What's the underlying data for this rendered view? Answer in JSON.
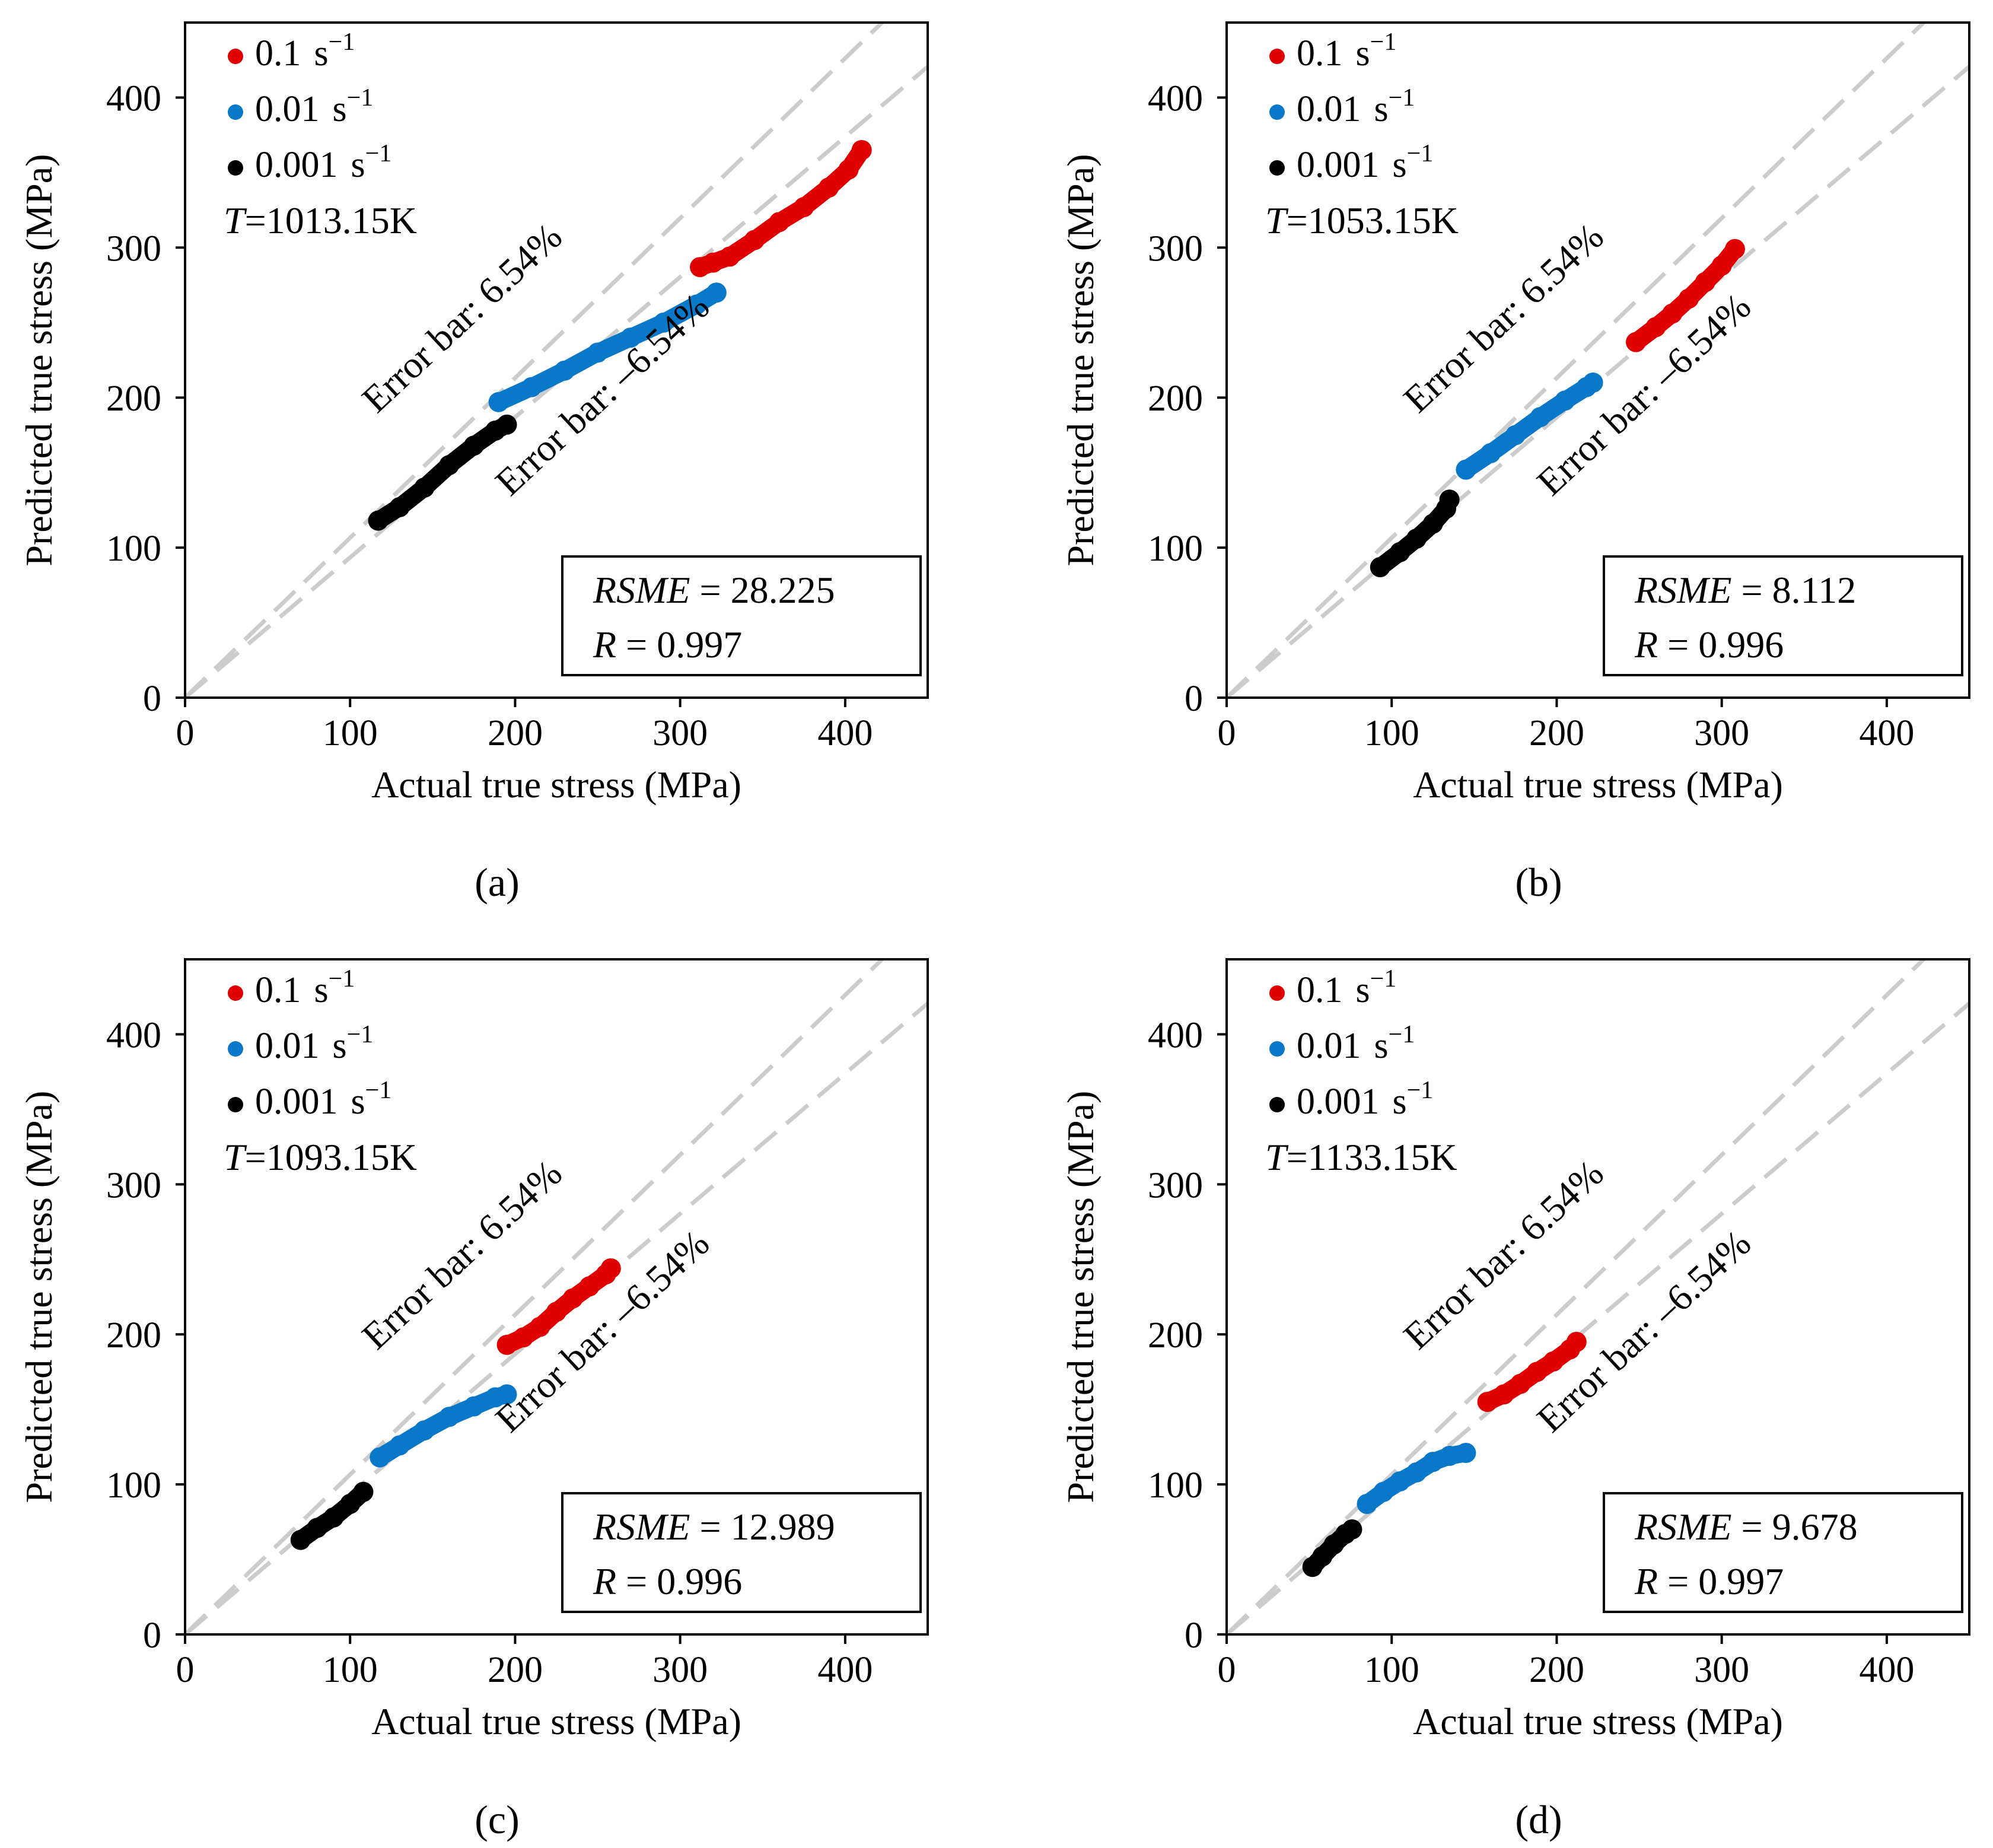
{
  "colors": {
    "red": "#e00000",
    "blue": "#0a78c8",
    "black": "#000000",
    "guide": "#cccccc",
    "frame": "#000000"
  },
  "common": {
    "xlabel": "Actual true stress (MPa)",
    "ylabel": "Predicted true stress (MPa)",
    "xticks": [
      "0",
      "100",
      "200",
      "300",
      "400"
    ],
    "yticks": [
      "0",
      "100",
      "200",
      "300",
      "400"
    ],
    "legend": [
      {
        "rate": "0.1",
        "unit": "s",
        "exp": "−1",
        "color": "red"
      },
      {
        "rate": "0.01",
        "unit": "s",
        "exp": "−1",
        "color": "blue"
      },
      {
        "rate": "0.001",
        "unit": "s",
        "exp": "−1",
        "color": "black"
      }
    ],
    "error_upper_label": "Error bar: 6.54%",
    "error_lower_label": "Error bar: –6.54%",
    "temp_symbol": "T",
    "rsme_symbol": "RSME",
    "r_symbol": "R",
    "equals": " = "
  },
  "chart_data": [
    {
      "type": "scatter",
      "panel_label": "(a)",
      "temperature": "=1013.15K",
      "rsme": "28.225",
      "r": "0.997",
      "xlim": [
        0,
        450
      ],
      "ylim": [
        0,
        450
      ],
      "error_band_pct": 6.54,
      "series": [
        {
          "name": "0.1 s−1",
          "color": "red",
          "points": [
            [
              312,
              287
            ],
            [
              320,
              290
            ],
            [
              330,
              294
            ],
            [
              345,
              305
            ],
            [
              360,
              317
            ],
            [
              375,
              327
            ],
            [
              390,
              340
            ],
            [
              402,
              352
            ],
            [
              410,
              365
            ]
          ]
        },
        {
          "name": "0.01 s−1",
          "color": "blue",
          "points": [
            [
              190,
              197
            ],
            [
              210,
              207
            ],
            [
              230,
              218
            ],
            [
              250,
              230
            ],
            [
              270,
              240
            ],
            [
              290,
              250
            ],
            [
              310,
              262
            ],
            [
              322,
              270
            ]
          ]
        },
        {
          "name": "0.001 s−1",
          "color": "black",
          "points": [
            [
              117,
              118
            ],
            [
              130,
              127
            ],
            [
              145,
              140
            ],
            [
              160,
              155
            ],
            [
              175,
              168
            ],
            [
              188,
              178
            ],
            [
              195,
              182
            ]
          ]
        }
      ]
    },
    {
      "type": "scatter",
      "panel_label": "(b)",
      "temperature": "=1053.15K",
      "rsme": "8.112",
      "r": "0.996",
      "xlim": [
        0,
        450
      ],
      "ylim": [
        0,
        450
      ],
      "error_band_pct": 6.54,
      "series": [
        {
          "name": "0.1 s−1",
          "color": "red",
          "points": [
            [
              248,
              237
            ],
            [
              260,
              247
            ],
            [
              270,
              256
            ],
            [
              280,
              266
            ],
            [
              290,
              277
            ],
            [
              300,
              288
            ],
            [
              308,
              299
            ]
          ]
        },
        {
          "name": "0.01 s−1",
          "color": "blue",
          "points": [
            [
              145,
              152
            ],
            [
              160,
              163
            ],
            [
              175,
              175
            ],
            [
              190,
              187
            ],
            [
              205,
              198
            ],
            [
              218,
              207
            ],
            [
              222,
              210
            ]
          ]
        },
        {
          "name": "0.001 s−1",
          "color": "black",
          "points": [
            [
              93,
              87
            ],
            [
              105,
              97
            ],
            [
              115,
              106
            ],
            [
              125,
              116
            ],
            [
              133,
              126
            ],
            [
              135,
              132
            ]
          ]
        }
      ]
    },
    {
      "type": "scatter",
      "panel_label": "(c)",
      "temperature": "=1093.15K",
      "rsme": "12.989",
      "r": "0.996",
      "xlim": [
        0,
        450
      ],
      "ylim": [
        0,
        450
      ],
      "error_band_pct": 6.54,
      "series": [
        {
          "name": "0.1 s−1",
          "color": "red",
          "points": [
            [
              195,
              193
            ],
            [
              205,
              198
            ],
            [
              215,
              205
            ],
            [
              225,
              215
            ],
            [
              235,
              224
            ],
            [
              245,
              232
            ],
            [
              255,
              240
            ],
            [
              258,
              244
            ]
          ]
        },
        {
          "name": "0.01 s−1",
          "color": "blue",
          "points": [
            [
              118,
              118
            ],
            [
              130,
              126
            ],
            [
              145,
              136
            ],
            [
              160,
              145
            ],
            [
              175,
              152
            ],
            [
              188,
              158
            ],
            [
              195,
              160
            ]
          ]
        },
        {
          "name": "0.001 s−1",
          "color": "black",
          "points": [
            [
              70,
              63
            ],
            [
              80,
              71
            ],
            [
              90,
              78
            ],
            [
              100,
              87
            ],
            [
              108,
              95
            ]
          ]
        }
      ]
    },
    {
      "type": "scatter",
      "panel_label": "(d)",
      "temperature": "=1133.15K",
      "rsme": "9.678",
      "r": "0.997",
      "xlim": [
        0,
        450
      ],
      "ylim": [
        0,
        450
      ],
      "error_band_pct": 6.54,
      "series": [
        {
          "name": "0.1 s−1",
          "color": "red",
          "points": [
            [
              158,
              155
            ],
            [
              168,
              160
            ],
            [
              178,
              167
            ],
            [
              188,
              175
            ],
            [
              198,
              182
            ],
            [
              208,
              190
            ],
            [
              212,
              195
            ]
          ]
        },
        {
          "name": "0.01 s−1",
          "color": "blue",
          "points": [
            [
              85,
              87
            ],
            [
              95,
              95
            ],
            [
              105,
              102
            ],
            [
              115,
              108
            ],
            [
              125,
              115
            ],
            [
              135,
              119
            ],
            [
              145,
              121
            ]
          ]
        },
        {
          "name": "0.001 s−1",
          "color": "black",
          "points": [
            [
              52,
              45
            ],
            [
              58,
              52
            ],
            [
              65,
              60
            ],
            [
              72,
              67
            ],
            [
              76,
              70
            ]
          ]
        }
      ]
    }
  ]
}
